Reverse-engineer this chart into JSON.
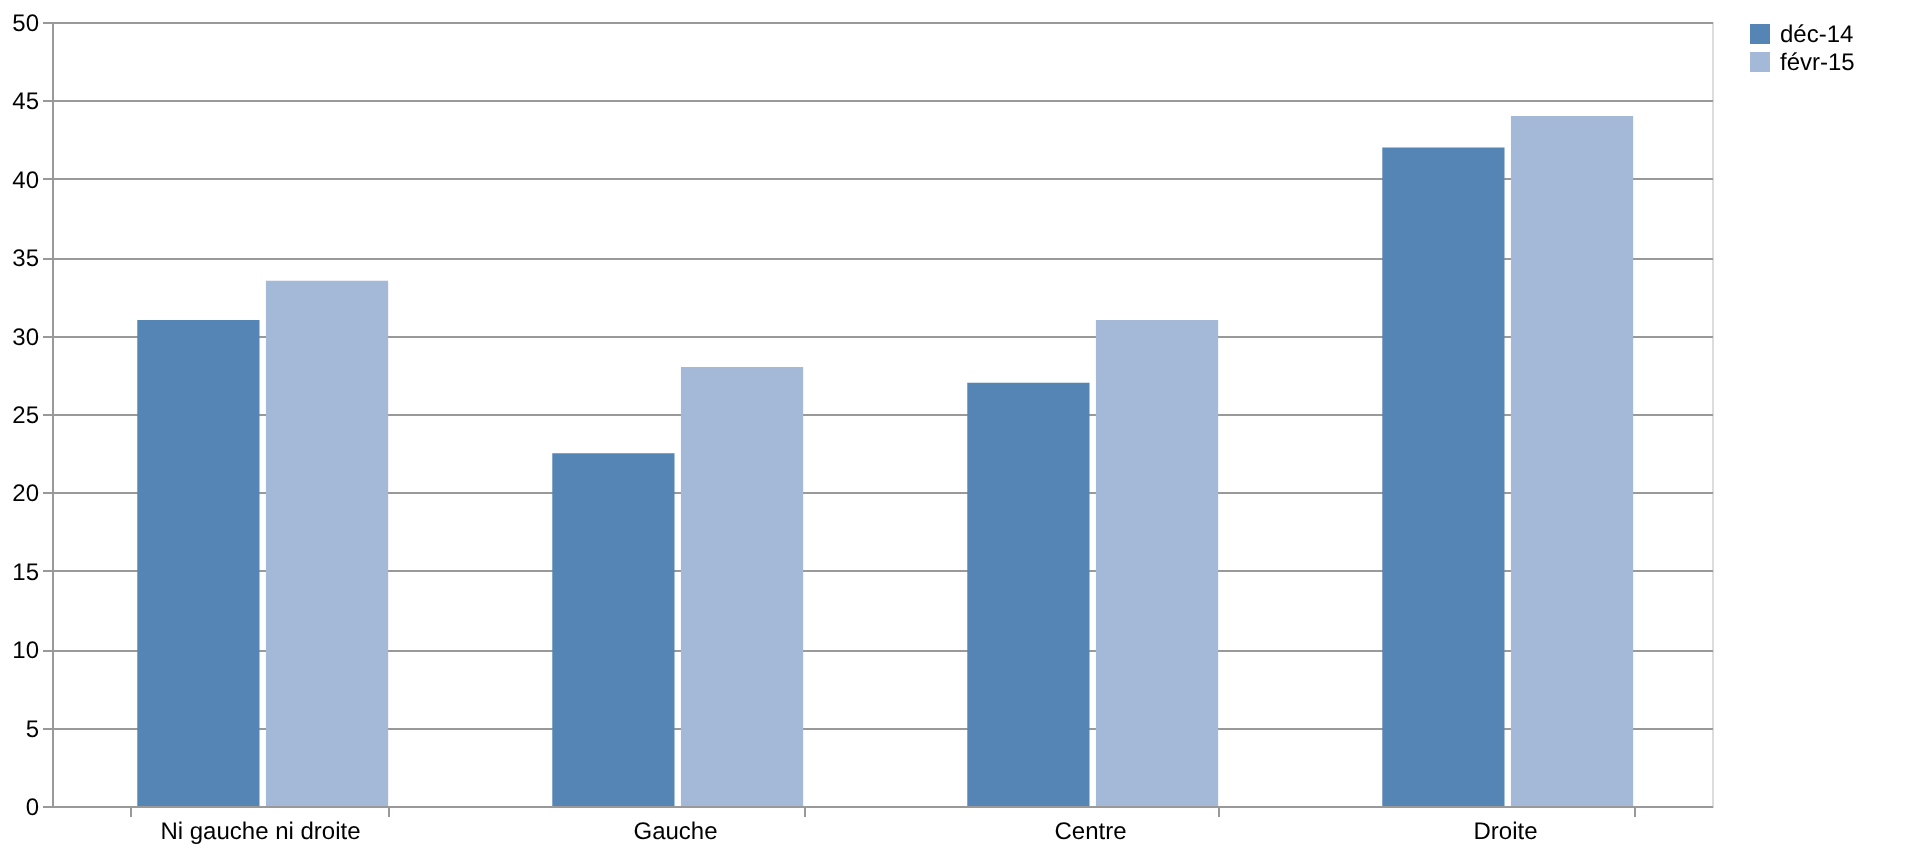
{
  "chart_data": {
    "type": "bar",
    "categories": [
      "Ni gauche ni droite",
      "Gauche",
      "Centre",
      "Droite"
    ],
    "series": [
      {
        "name": "déc-14",
        "color": "#5585b5",
        "values": [
          31,
          22.5,
          27,
          42
        ]
      },
      {
        "name": "févr-15",
        "color": "#a4b8d8",
        "values": [
          33.5,
          28,
          31,
          44
        ]
      }
    ],
    "ylim": [
      0,
      50
    ],
    "yticks": [
      0,
      5,
      10,
      15,
      20,
      25,
      30,
      35,
      40,
      45,
      50
    ],
    "grid": "y",
    "legend": "right"
  }
}
